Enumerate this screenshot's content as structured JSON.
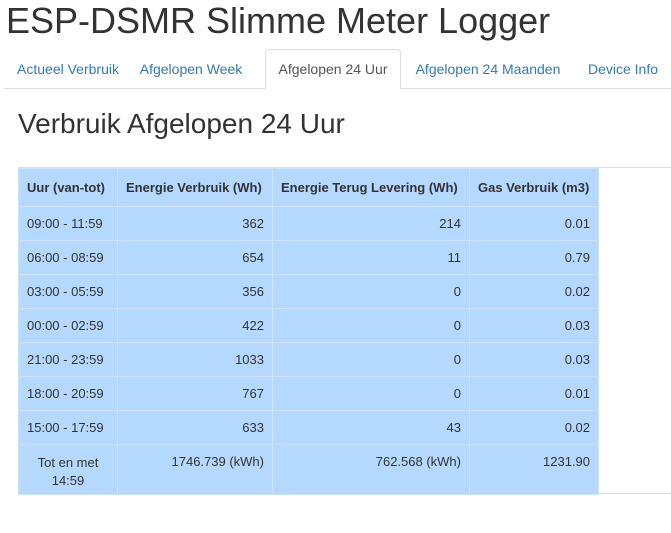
{
  "app": {
    "title": "ESP-DSMR Slimme Meter Logger"
  },
  "tabs": [
    {
      "label": "Actueel Verbruik",
      "active": false
    },
    {
      "label": "Afgelopen Week",
      "active": false
    },
    {
      "label": "Afgelopen 24 Uur",
      "active": true
    },
    {
      "label": "Afgelopen 24 Maanden",
      "active": false
    },
    {
      "label": "Device Info",
      "active": false
    }
  ],
  "main": {
    "heading": "Verbruik Afgelopen 24 Uur",
    "table": {
      "columns": [
        "Uur (van-tot)",
        "Energie Verbruik (Wh)",
        "Energie Terug Levering (Wh)",
        "Gas Verbruik (m3)"
      ],
      "rows": [
        [
          "09:00 - 11:59",
          "362",
          "214",
          "0.01"
        ],
        [
          "06:00 - 08:59",
          "654",
          "11",
          "0.79"
        ],
        [
          "03:00 - 05:59",
          "356",
          "0",
          "0.02"
        ],
        [
          "00:00 - 02:59",
          "422",
          "0",
          "0.03"
        ],
        [
          "21:00 - 23:59",
          "1033",
          "0",
          "0.03"
        ],
        [
          "18:00 - 20:59",
          "767",
          "0",
          "0.01"
        ],
        [
          "15:00 - 17:59",
          "633",
          "43",
          "0.02"
        ]
      ],
      "total": [
        "Tot en met 14:59",
        "1746.739 (kWh)",
        "762.568 (kWh)",
        "1231.90"
      ]
    }
  },
  "colors": {
    "link": "#337ab7",
    "table_bg": "#b5d8fe"
  }
}
